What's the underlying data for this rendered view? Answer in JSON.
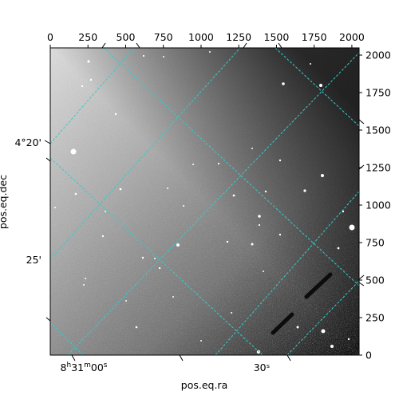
{
  "figure": {
    "type": "astronomical-image",
    "colormap": "grayscale",
    "grid_color": "#33cccc",
    "top_axis": {
      "ticks": [
        "0",
        "250",
        "500",
        "750",
        "1000",
        "1250",
        "1500",
        "1750",
        "2000"
      ],
      "tick_values": [
        0,
        250,
        500,
        750,
        1000,
        1250,
        1500,
        1750,
        2000
      ]
    },
    "right_axis": {
      "ticks": [
        "0",
        "250",
        "500",
        "750",
        "1000",
        "1250",
        "1500",
        "1750",
        "2000"
      ],
      "tick_values": [
        0,
        250,
        500,
        750,
        1000,
        1250,
        1500,
        1750,
        2000
      ]
    },
    "pixel_range": [
      0,
      2048
    ],
    "ra_axis": {
      "label": "pos.eq.ra",
      "ticks": [
        {
          "hms": {
            "h": "8",
            "m": "31",
            "s": "00"
          },
          "value": "8h31m00s"
        },
        {
          "text": "30ˢ",
          "value": "8h31m30s"
        }
      ]
    },
    "dec_axis": {
      "label": "pos.eq.dec",
      "ticks": [
        {
          "text": "4°20'",
          "value": "4°20'"
        },
        {
          "text": "25'",
          "value": "4°25'"
        }
      ]
    }
  }
}
